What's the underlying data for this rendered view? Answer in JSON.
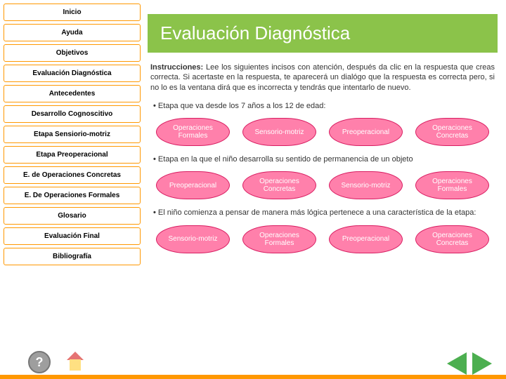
{
  "colors": {
    "nav_border": "#ff9800",
    "title_bg": "#8bc34a",
    "option_bg": "#ff80ab",
    "option_border": "#d81b60",
    "arrow": "#4caf50",
    "footer_accent": "#ff9800"
  },
  "sidebar": {
    "items": [
      {
        "label": "Inicio"
      },
      {
        "label": "Ayuda"
      },
      {
        "label": "Objetivos"
      },
      {
        "label": "Evaluación Diagnóstica"
      },
      {
        "label": "Antecedentes"
      },
      {
        "label": "Desarrollo Cognoscitivo"
      },
      {
        "label": "Etapa Sensiorio-motriz"
      },
      {
        "label": "Etapa Preoperacional"
      },
      {
        "label": "E. de Operaciones Concretas"
      },
      {
        "label": "E. De Operaciones Formales"
      },
      {
        "label": "Glosario"
      },
      {
        "label": "Evaluación Final"
      },
      {
        "label": "Bibliografía"
      }
    ]
  },
  "main": {
    "title": "Evaluación Diagnóstica",
    "instructions_label": "Instrucciones:",
    "instructions_text": " Lee los siguientes incisos con atención, después da clic en la respuesta que creas correcta. Si acertaste en la respuesta, te aparecerá un dialógo que la respuesta es correcta pero, si no lo es la ventana dirá que es incorrecta y tendrás que intentarlo de nuevo.",
    "questions": [
      {
        "text": "Etapa que va desde los 7 años a los 12 de edad:",
        "options": [
          "Operaciones Formales",
          "Sensorio-motriz",
          "Preoperacional",
          "Operaciones Concretas"
        ]
      },
      {
        "text": "Etapa en la que el niño desarrolla su sentido de permanencia de un objeto",
        "options": [
          "Preoperacional",
          "Operaciones Concretas",
          "Sensorio-motriz",
          "Operaciones Formales"
        ]
      },
      {
        "text": "El niño comienza a pensar de manera más lógica pertenece a una característica de la etapa:",
        "options": [
          "Sensorio-motriz",
          "Operaciones Formales",
          "Preoperacional",
          "Operaciones Concretas"
        ]
      }
    ]
  }
}
